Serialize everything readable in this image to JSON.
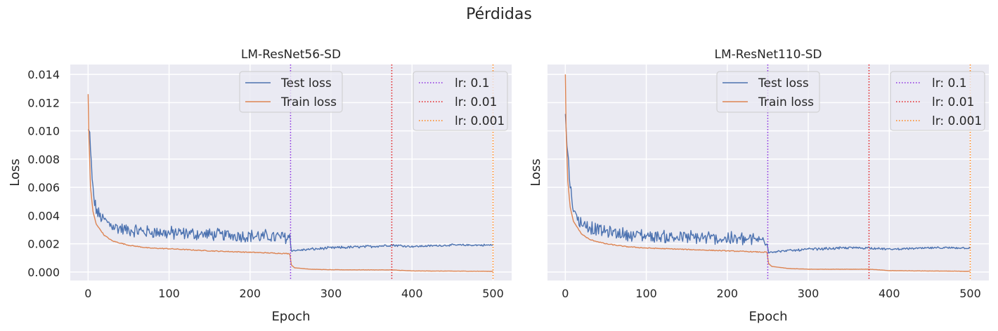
{
  "figure": {
    "suptitle": "Pérdidas"
  },
  "colors": {
    "test": "#4c72b0",
    "train": "#dd8452",
    "lr_01": "#8a2be2",
    "lr_001": "#e41a1c",
    "lr_0001": "#ff7f0e",
    "axes_bg": "#eaeaf2",
    "grid": "#ffffff"
  },
  "chart_data": [
    {
      "type": "line",
      "title": "LM-ResNet56-SD",
      "xlabel": "Epoch",
      "ylabel": "Loss",
      "xlim": [
        -22,
        523
      ],
      "ylim": [
        -0.0006,
        0.0147
      ],
      "xticks": [
        0,
        100,
        200,
        300,
        400,
        500
      ],
      "xtick_labels": [
        "0",
        "100",
        "200",
        "300",
        "400",
        "500"
      ],
      "yticks": [
        0,
        0.002,
        0.004,
        0.006,
        0.008,
        0.01,
        0.012,
        0.014
      ],
      "ytick_labels": [
        "0.000",
        "0.002",
        "0.004",
        "0.006",
        "0.008",
        "0.010",
        "0.012",
        "0.014"
      ],
      "grid": true,
      "legend_placement": [
        "upper center",
        "upper right"
      ],
      "series": [
        {
          "name": "Test loss",
          "kind": "test",
          "x": [
            0,
            2,
            5,
            8,
            12,
            20,
            30,
            50,
            75,
            100,
            150,
            200,
            249,
            251,
            275,
            300,
            350,
            375,
            400,
            450,
            500
          ],
          "y": [
            0.0101,
            0.0098,
            0.0064,
            0.0048,
            0.0041,
            0.0036,
            0.0032,
            0.0029,
            0.0028,
            0.0027,
            0.0026,
            0.0025,
            0.0024,
            0.0015,
            0.0016,
            0.0017,
            0.0018,
            0.0019,
            0.0018,
            0.0019,
            0.0019
          ],
          "noise": [
            0,
            0.0002,
            0.0004,
            0.0004,
            0.0004,
            0.0004,
            0.0004,
            0.0004,
            0.0004,
            0.0004,
            0.0004,
            0.0004,
            0.0004,
            5e-05,
            8e-05,
            8e-05,
            8e-05,
            8e-05,
            6e-05,
            6e-05,
            6e-05
          ]
        },
        {
          "name": "Train loss",
          "kind": "train",
          "x": [
            0,
            1,
            3,
            6,
            10,
            20,
            30,
            50,
            75,
            100,
            150,
            200,
            249,
            251,
            255,
            275,
            300,
            375,
            400,
            500
          ],
          "y": [
            0.0126,
            0.0095,
            0.006,
            0.0043,
            0.0034,
            0.0026,
            0.0022,
            0.0019,
            0.0017,
            0.00165,
            0.0015,
            0.0014,
            0.0013,
            0.0005,
            0.0003,
            0.0002,
            0.00016,
            0.00015,
            8e-05,
            5e-05
          ],
          "noise": [
            0,
            0,
            0,
            0,
            0,
            3e-05,
            3e-05,
            3e-05,
            3e-05,
            3e-05,
            3e-05,
            3e-05,
            3e-05,
            0,
            0,
            1e-05,
            1e-05,
            1e-05,
            1e-05,
            1e-05
          ]
        }
      ],
      "vlines": [
        {
          "name": "lr: 0.1",
          "x": 250,
          "kind": "lr_01"
        },
        {
          "name": "lr: 0.01",
          "x": 375,
          "kind": "lr_001"
        },
        {
          "name": "lr: 0.001",
          "x": 500,
          "kind": "lr_0001"
        }
      ]
    },
    {
      "type": "line",
      "title": "LM-ResNet110-SD",
      "xlabel": "Epoch",
      "ylabel": "Loss",
      "xlim": [
        -22,
        523
      ],
      "ylim": [
        -0.0006,
        0.0147
      ],
      "xticks": [
        0,
        100,
        200,
        300,
        400,
        500
      ],
      "xtick_labels": [
        "0",
        "100",
        "200",
        "300",
        "400",
        "500"
      ],
      "yticks": [
        0,
        0.002,
        0.004,
        0.006,
        0.008,
        0.01,
        0.012,
        0.014
      ],
      "ytick_labels": [],
      "grid": true,
      "legend_placement": [
        "upper center",
        "upper right"
      ],
      "series": [
        {
          "name": "Test loss",
          "kind": "test",
          "x": [
            0,
            2,
            5,
            8,
            12,
            20,
            30,
            50,
            75,
            100,
            150,
            200,
            249,
            251,
            275,
            300,
            350,
            375,
            400,
            450,
            500
          ],
          "y": [
            0.0112,
            0.009,
            0.007,
            0.005,
            0.004,
            0.0034,
            0.0031,
            0.0028,
            0.0026,
            0.0025,
            0.0024,
            0.0023,
            0.0022,
            0.0014,
            0.0015,
            0.0016,
            0.0017,
            0.0017,
            0.0016,
            0.0017,
            0.0017
          ],
          "noise": [
            0,
            0.0003,
            0.0005,
            0.0005,
            0.0004,
            0.0004,
            0.0004,
            0.0004,
            0.0004,
            0.0004,
            0.0004,
            0.0004,
            0.0004,
            5e-05,
            8e-05,
            8e-05,
            8e-05,
            8e-05,
            6e-05,
            6e-05,
            6e-05
          ]
        },
        {
          "name": "Train loss",
          "kind": "train",
          "x": [
            0,
            1,
            3,
            6,
            10,
            20,
            30,
            50,
            75,
            100,
            150,
            200,
            249,
            251,
            255,
            275,
            300,
            375,
            400,
            500
          ],
          "y": [
            0.014,
            0.01,
            0.0065,
            0.0046,
            0.0036,
            0.0027,
            0.0023,
            0.002,
            0.0018,
            0.0017,
            0.0016,
            0.0015,
            0.0014,
            0.0006,
            0.0004,
            0.00025,
            0.0002,
            0.0002,
            0.0001,
            5e-05
          ],
          "noise": [
            0,
            0,
            0,
            0,
            0,
            3e-05,
            3e-05,
            3e-05,
            3e-05,
            3e-05,
            3e-05,
            3e-05,
            3e-05,
            0,
            0,
            1e-05,
            1e-05,
            1e-05,
            1e-05,
            1e-05
          ]
        }
      ],
      "vlines": [
        {
          "name": "lr: 0.1",
          "x": 250,
          "kind": "lr_01"
        },
        {
          "name": "lr: 0.01",
          "x": 375,
          "kind": "lr_001"
        },
        {
          "name": "lr: 0.001",
          "x": 500,
          "kind": "lr_0001"
        }
      ]
    }
  ]
}
